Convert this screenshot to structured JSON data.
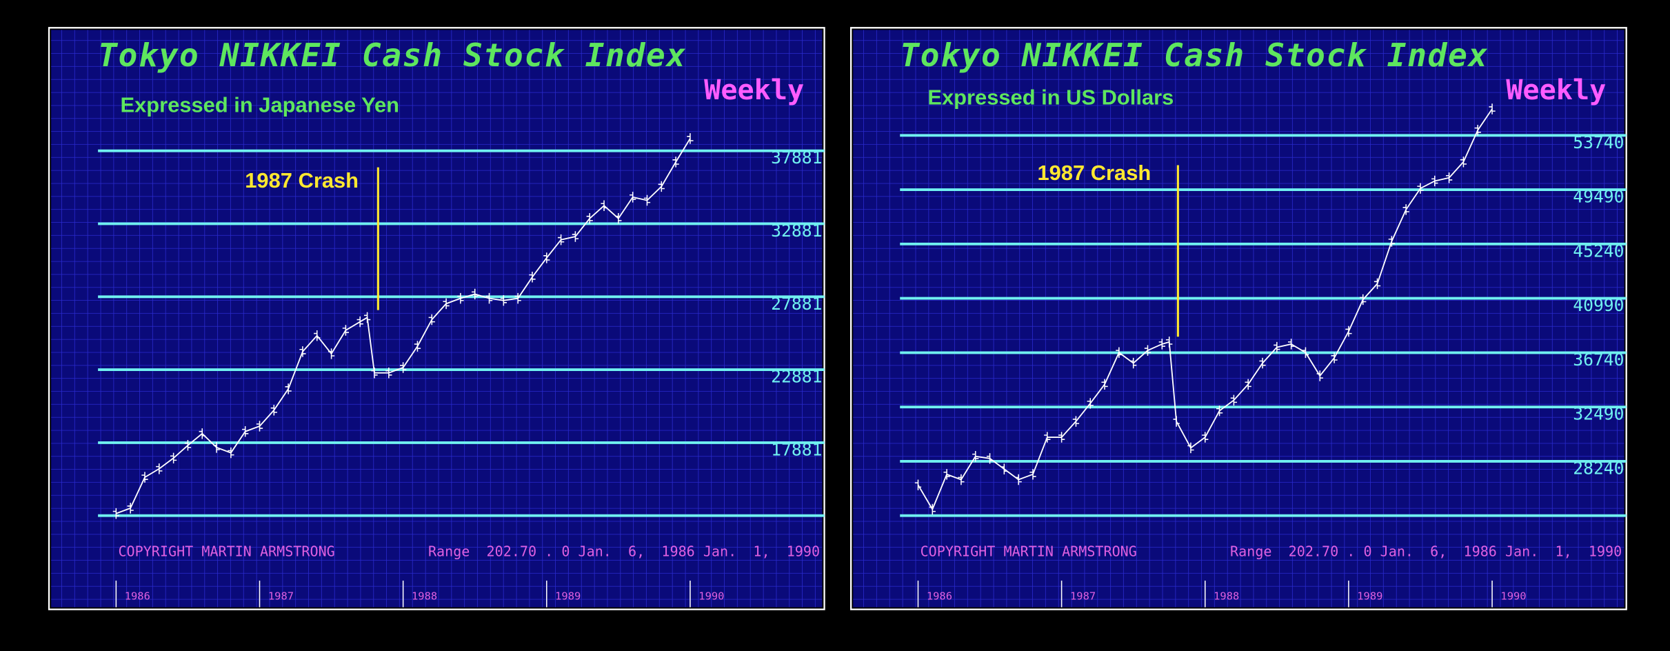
{
  "chart_data": [
    {
      "type": "line",
      "title": "Tokyo NIKKEI Cash Stock Index",
      "frequency": "Weekly",
      "subtitle": "Expressed in Japanese Yen",
      "annotation": "1987 Crash",
      "copyright": "COPYRIGHT MARTIN ARMSTRONG",
      "range_note": "Range  202.70 . 0 Jan.  6,  1986 Jan.  1,  1990",
      "xlim": [
        1986,
        1990
      ],
      "xticks": [
        1986,
        1987,
        1988,
        1989,
        1990
      ],
      "ylim": [
        12881,
        42881
      ],
      "yticks": [
        17881,
        22881,
        27881,
        32881,
        37881
      ],
      "color": "#ffffff",
      "grid": true,
      "x": [
        1986.0,
        1986.1,
        1986.2,
        1986.3,
        1986.4,
        1986.5,
        1986.6,
        1986.7,
        1986.8,
        1986.9,
        1987.0,
        1987.1,
        1987.2,
        1987.3,
        1987.4,
        1987.5,
        1987.6,
        1987.7,
        1987.75,
        1987.8,
        1987.9,
        1988.0,
        1988.1,
        1988.2,
        1988.3,
        1988.4,
        1988.5,
        1988.6,
        1988.7,
        1988.8,
        1988.9,
        1989.0,
        1989.1,
        1989.2,
        1989.3,
        1989.4,
        1989.5,
        1989.6,
        1989.7,
        1989.8,
        1989.9,
        1990.0
      ],
      "values": [
        13027,
        13392,
        15509,
        16093,
        16823,
        17698,
        18501,
        17552,
        17188,
        18647,
        19013,
        20108,
        21567,
        24122,
        25217,
        23976,
        25581,
        26166,
        26458,
        22662,
        22662,
        23027,
        24487,
        26312,
        27406,
        27771,
        28063,
        27771,
        27625,
        27771,
        29231,
        30545,
        31786,
        32005,
        33246,
        34122,
        33246,
        34706,
        34487,
        35436,
        37115,
        38722
      ]
    },
    {
      "type": "line",
      "title": "Tokyo NIKKEI Cash Stock Index",
      "frequency": "Weekly",
      "subtitle": "Expressed in US Dollars",
      "annotation": "1987 Crash",
      "copyright": "COPYRIGHT MARTIN ARMSTRONG",
      "range_note": "Range  202.70 . 0 Jan.  6,  1986 Jan.  1,  1990",
      "xlim": [
        1986,
        1990
      ],
      "xticks": [
        1986,
        1987,
        1988,
        1989,
        1990
      ],
      "ylim": [
        23990,
        58240
      ],
      "yticks": [
        28240,
        32490,
        36740,
        40990,
        45240,
        49490,
        53740
      ],
      "color": "#ffffff",
      "grid": true,
      "x": [
        1986.0,
        1986.1,
        1986.2,
        1986.3,
        1986.4,
        1986.5,
        1986.6,
        1986.7,
        1986.8,
        1986.9,
        1987.0,
        1987.1,
        1987.2,
        1987.3,
        1987.4,
        1987.5,
        1987.6,
        1987.7,
        1987.75,
        1987.8,
        1987.9,
        1988.0,
        1988.1,
        1988.2,
        1988.3,
        1988.4,
        1988.5,
        1988.6,
        1988.7,
        1988.8,
        1988.9,
        1989.0,
        1989.1,
        1989.2,
        1989.3,
        1989.4,
        1989.5,
        1989.6,
        1989.7,
        1989.8,
        1989.9,
        1990.0
      ],
      "values": [
        26393,
        24487,
        27221,
        26807,
        28629,
        28464,
        27635,
        26807,
        27221,
        30121,
        30121,
        31364,
        32772,
        34263,
        36749,
        35920,
        36914,
        37411,
        37577,
        31364,
        29292,
        30121,
        32192,
        33021,
        34263,
        35920,
        37163,
        37411,
        36749,
        34926,
        36335,
        38406,
        40891,
        42134,
        45448,
        47934,
        49591,
        50170,
        50419,
        51662,
        54147,
        55804
      ]
    }
  ]
}
